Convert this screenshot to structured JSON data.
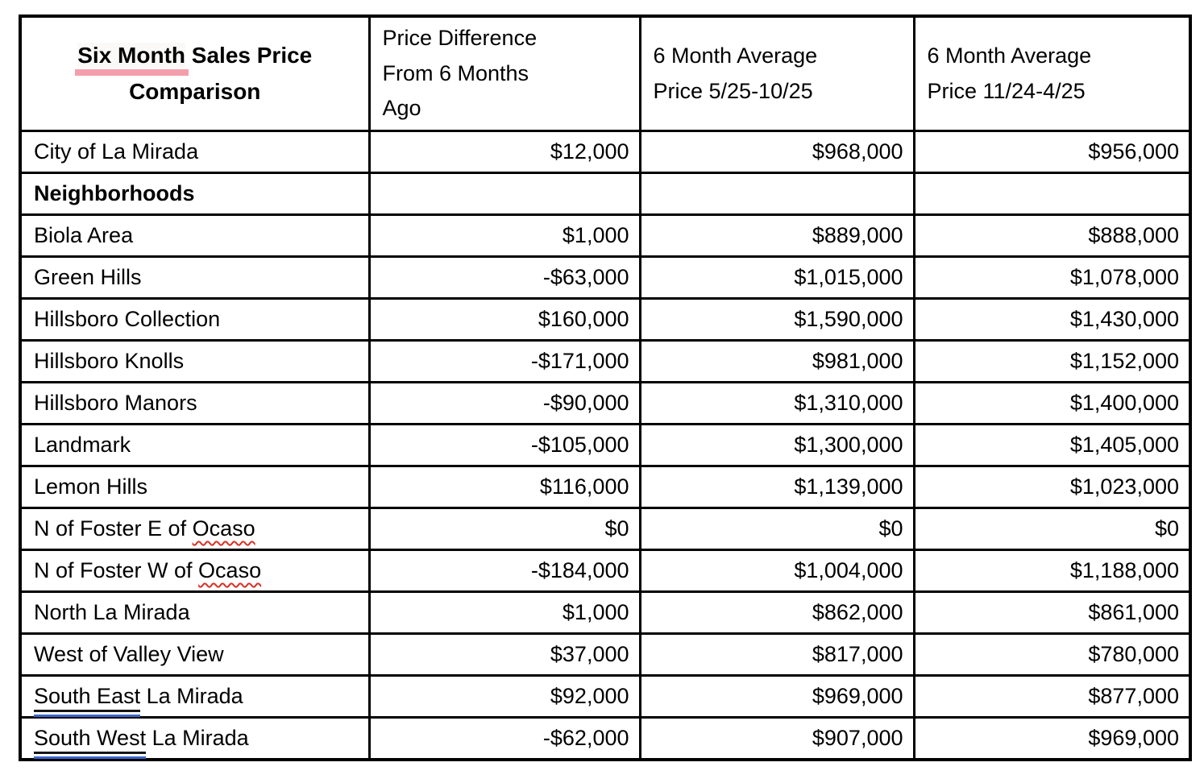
{
  "colors": {
    "highlight_pink": "#f49dab",
    "spellcheck_red": "#d93025",
    "grammar_blue": "#3a66cc",
    "border_black": "#000000",
    "text_black": "#000000",
    "background_white": "#ffffff"
  },
  "table": {
    "title": {
      "highlighted": "Six Month",
      "rest_line1": " Sales Price",
      "line2": "Comparison"
    },
    "columns": [
      {
        "lines": [
          "Price Difference",
          "From 6 Months",
          "Ago"
        ]
      },
      {
        "lines": [
          "6 Month Average",
          "Price 5/25-10/25"
        ]
      },
      {
        "lines": [
          "6 Month Average",
          "Price 11/24-4/25"
        ]
      }
    ],
    "rows": [
      {
        "bold": false,
        "label": [
          {
            "t": "City of La Mirada"
          }
        ],
        "values": [
          "$12,000",
          "$968,000",
          "$956,000"
        ]
      },
      {
        "bold": true,
        "label": [
          {
            "t": "Neighborhoods"
          }
        ],
        "values": [
          "",
          "",
          ""
        ]
      },
      {
        "bold": false,
        "label": [
          {
            "t": "Biola Area"
          }
        ],
        "values": [
          "$1,000",
          "$889,000",
          "$888,000"
        ]
      },
      {
        "bold": false,
        "label": [
          {
            "t": "Green Hills"
          }
        ],
        "values": [
          "-$63,000",
          "$1,015,000",
          "$1,078,000"
        ]
      },
      {
        "bold": false,
        "label": [
          {
            "t": "Hillsboro Collection"
          }
        ],
        "values": [
          "$160,000",
          "$1,590,000",
          "$1,430,000"
        ]
      },
      {
        "bold": false,
        "label": [
          {
            "t": "Hillsboro Knolls"
          }
        ],
        "values": [
          "-$171,000",
          "$981,000",
          "$1,152,000"
        ]
      },
      {
        "bold": false,
        "label": [
          {
            "t": "Hillsboro Manors"
          }
        ],
        "values": [
          "-$90,000",
          "$1,310,000",
          "$1,400,000"
        ]
      },
      {
        "bold": false,
        "label": [
          {
            "t": "Landmark"
          }
        ],
        "values": [
          "-$105,000",
          "$1,300,000",
          "$1,405,000"
        ]
      },
      {
        "bold": false,
        "label": [
          {
            "t": "Lemon Hills"
          }
        ],
        "values": [
          "$116,000",
          "$1,139,000",
          "$1,023,000"
        ]
      },
      {
        "bold": false,
        "label": [
          {
            "t": "N of Foster E of "
          },
          {
            "t": "Ocaso",
            "deco": "spellcheck"
          }
        ],
        "values": [
          "$0",
          "$0",
          "$0"
        ]
      },
      {
        "bold": false,
        "label": [
          {
            "t": "N of Foster W of "
          },
          {
            "t": "Ocaso",
            "deco": "spellcheck"
          }
        ],
        "values": [
          "-$184,000",
          "$1,004,000",
          "$1,188,000"
        ]
      },
      {
        "bold": false,
        "label": [
          {
            "t": "North La Mirada"
          }
        ],
        "values": [
          "$1,000",
          "$862,000",
          "$861,000"
        ]
      },
      {
        "bold": false,
        "label": [
          {
            "t": "West of Valley View"
          }
        ],
        "values": [
          "$37,000",
          "$817,000",
          "$780,000"
        ]
      },
      {
        "bold": false,
        "label": [
          {
            "t": "South East",
            "deco": "grammar"
          },
          {
            "t": " La Mirada"
          }
        ],
        "values": [
          "$92,000",
          "$969,000",
          "$877,000"
        ]
      },
      {
        "bold": false,
        "label": [
          {
            "t": "South West",
            "deco": "grammar"
          },
          {
            "t": " La Mirada"
          }
        ],
        "values": [
          "-$62,000",
          "$907,000",
          "$969,000"
        ]
      }
    ]
  }
}
